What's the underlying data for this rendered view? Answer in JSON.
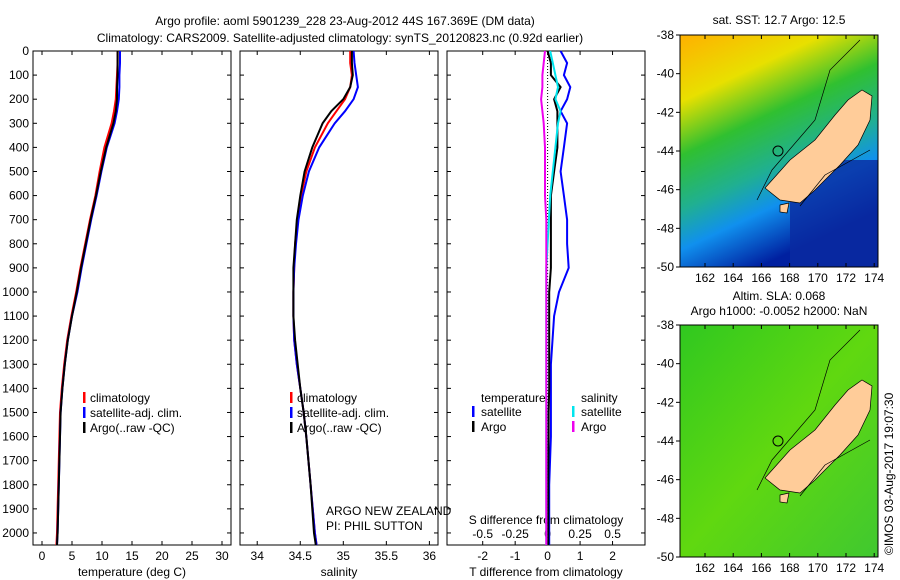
{
  "title_line1": "Argo profile: aoml 5901239_228 23-Aug-2012 44S 167.369E (DM data)",
  "title_line2": "Climatology: CARS2009. Satellite-adjusted climatology: synTS_20120823.nc (0.92d earlier)",
  "colors": {
    "climatology": "#ff0000",
    "satellite": "#0000ff",
    "argo": "#000000",
    "sal_satellite": "#00e5ee",
    "sal_argo": "#ee00ee",
    "land": "#ffcc99"
  },
  "chart_data": [
    {
      "type": "line",
      "name": "temperature",
      "xlabel": "temperature (deg C)",
      "xlim": [
        -1.5,
        31.5
      ],
      "ylim": [
        2050,
        0
      ],
      "xticks": [
        0,
        5,
        10,
        15,
        20,
        25,
        30
      ],
      "yticks": [
        0,
        100,
        200,
        300,
        400,
        500,
        600,
        700,
        800,
        900,
        1000,
        1100,
        1200,
        1300,
        1400,
        1500,
        1600,
        1700,
        1800,
        1900,
        2000
      ],
      "depth": [
        0,
        50,
        100,
        150,
        200,
        250,
        300,
        400,
        500,
        600,
        700,
        800,
        900,
        1000,
        1100,
        1200,
        1300,
        1400,
        1500,
        1600,
        1800,
        2000,
        2050
      ],
      "legend": [
        "climatology",
        "satellite-adj. clim.",
        "Argo(..raw -QC)"
      ],
      "series": [
        {
          "name": "climatology",
          "color": "#ff0000",
          "values": [
            12.6,
            12.6,
            12.5,
            12.4,
            12.3,
            12.0,
            11.6,
            10.4,
            9.6,
            8.9,
            8.0,
            7.2,
            6.4,
            5.7,
            4.9,
            4.2,
            3.7,
            3.3,
            3.0,
            2.9,
            2.7,
            2.5,
            2.4
          ]
        },
        {
          "name": "satellite-adj. clim.",
          "color": "#0000ff",
          "values": [
            13.0,
            13.0,
            12.9,
            12.9,
            12.8,
            12.5,
            12.1,
            10.8,
            9.9,
            9.1,
            8.2,
            7.4,
            6.6,
            5.9,
            5.0,
            4.3,
            3.8,
            3.4,
            3.1,
            3.0,
            2.8,
            2.6,
            2.5
          ]
        },
        {
          "name": "Argo(..raw -QC)",
          "color": "#000000",
          "values": [
            12.6,
            12.6,
            12.6,
            12.5,
            12.5,
            12.3,
            11.9,
            10.7,
            9.8,
            9.0,
            8.1,
            7.3,
            6.5,
            5.8,
            5.0,
            4.3,
            3.8,
            3.4,
            3.1,
            3.0,
            2.8,
            2.6,
            2.5
          ]
        }
      ]
    },
    {
      "type": "line",
      "name": "salinity",
      "xlabel": "salinity",
      "xlim": [
        33.8,
        36.1
      ],
      "ylim": [
        2050,
        0
      ],
      "xticks": [
        34,
        34.5,
        35,
        35.5,
        36
      ],
      "depth": [
        0,
        50,
        100,
        150,
        200,
        250,
        300,
        400,
        500,
        600,
        700,
        800,
        900,
        1000,
        1100,
        1200,
        1300,
        1400,
        1500,
        1600,
        1800,
        2000,
        2050
      ],
      "legend": [
        "climatology",
        "satellite-adj. clim.",
        "Argo(..raw -QC)"
      ],
      "annotations": [
        "ARGO NEW ZEALAND",
        "PI: PHIL SUTTON"
      ],
      "series": [
        {
          "name": "climatology",
          "color": "#ff0000",
          "values": [
            35.08,
            35.08,
            35.1,
            35.08,
            35.02,
            34.92,
            34.82,
            34.67,
            34.57,
            34.51,
            34.47,
            34.44,
            34.43,
            34.42,
            34.42,
            34.43,
            34.46,
            34.5,
            34.54,
            34.57,
            34.62,
            34.67,
            34.69
          ]
        },
        {
          "name": "satellite-adj. clim.",
          "color": "#0000ff",
          "values": [
            35.12,
            35.13,
            35.15,
            35.17,
            35.12,
            35.02,
            34.9,
            34.72,
            34.6,
            34.53,
            34.48,
            34.45,
            34.43,
            34.42,
            34.42,
            34.43,
            34.46,
            34.5,
            34.54,
            34.57,
            34.62,
            34.67,
            34.69
          ]
        },
        {
          "name": "Argo(..raw -QC)",
          "color": "#000000",
          "values": [
            35.1,
            35.1,
            35.11,
            35.08,
            35.0,
            34.86,
            34.76,
            34.64,
            34.55,
            34.5,
            34.46,
            34.44,
            34.42,
            34.42,
            34.42,
            34.44,
            34.47,
            34.5,
            34.54,
            34.57,
            34.62,
            34.66,
            34.68
          ]
        }
      ]
    },
    {
      "type": "line",
      "name": "difference",
      "xlabel": "T difference from climatology",
      "x2label": "S difference from climatology",
      "xlim": [
        -3.1,
        3.0
      ],
      "ylim": [
        2050,
        0
      ],
      "xticks": [
        -2,
        -1,
        0,
        1,
        2
      ],
      "x2lim": [
        -0.775,
        0.75
      ],
      "x2ticks": [
        -0.5,
        -0.25,
        0,
        0.25,
        0.5
      ],
      "x2ticklabels": [
        "-0.5",
        "-0.25",
        "0",
        "0.25",
        "0.5"
      ],
      "depth": [
        0,
        50,
        100,
        150,
        200,
        250,
        300,
        400,
        500,
        600,
        700,
        800,
        900,
        1000,
        1100,
        1200,
        1300,
        1400,
        1500,
        1600,
        1800,
        2000,
        2050
      ],
      "legend_temperature": {
        "title": "temperature",
        "items": [
          "satellite",
          "Argo"
        ]
      },
      "legend_salinity": {
        "title": "salinity",
        "items": [
          "satellite",
          "Argo"
        ]
      },
      "series": [
        {
          "name": "T satellite",
          "axis": "T",
          "color": "#0000ff",
          "values": [
            0.4,
            0.6,
            0.5,
            0.7,
            0.6,
            0.4,
            0.6,
            0.5,
            0.4,
            0.5,
            0.6,
            0.6,
            0.65,
            0.35,
            0.2,
            0.15,
            0.1,
            0.1,
            0.1,
            0.1,
            0.05,
            0.05,
            0.05
          ]
        },
        {
          "name": "T Argo",
          "axis": "T",
          "color": "#000000",
          "values": [
            0.0,
            0.1,
            0.1,
            0.4,
            0.2,
            0.3,
            0.3,
            0.3,
            0.2,
            0.1,
            0.1,
            0.1,
            0.1,
            0.05,
            0.05,
            0.05,
            0.05,
            0.05,
            0.03,
            0.03,
            0.02,
            0.02,
            0.02
          ]
        },
        {
          "name": "S satellite",
          "axis": "S",
          "color": "#00e5ee",
          "values": [
            0.02,
            0.04,
            0.06,
            0.08,
            0.06,
            0.1,
            0.08,
            0.06,
            0.04,
            0.02,
            0.01,
            0.0,
            -0.01,
            -0.01,
            -0.01,
            -0.01,
            -0.01,
            -0.01,
            -0.01,
            -0.01,
            -0.01,
            -0.01,
            -0.01
          ]
        },
        {
          "name": "S Argo",
          "axis": "S",
          "color": "#ee00ee",
          "values": [
            -0.02,
            -0.03,
            -0.04,
            -0.04,
            -0.05,
            -0.04,
            -0.03,
            -0.02,
            -0.02,
            -0.02,
            -0.01,
            -0.01,
            -0.01,
            -0.01,
            -0.01,
            -0.01,
            -0.01,
            -0.01,
            -0.01,
            -0.01,
            -0.01,
            -0.01,
            -0.01
          ]
        }
      ]
    }
  ],
  "maps": [
    {
      "title": "sat. SST: 12.7 Argo: 12.5",
      "lat_ticks": [
        "-38",
        "-40",
        "-42",
        "-44",
        "-46",
        "-48",
        "-50"
      ],
      "lon_ticks": [
        "162",
        "164",
        "166",
        "168",
        "170",
        "172",
        "174"
      ]
    },
    {
      "title1": "Altim. SLA: 0.068",
      "title2": "Argo h1000: -0.0052 h2000: NaN",
      "lat_ticks": [
        "-38",
        "-40",
        "-42",
        "-44",
        "-46",
        "-48",
        "-50"
      ],
      "lon_ticks": [
        "162",
        "164",
        "166",
        "168",
        "170",
        "172",
        "174"
      ]
    }
  ],
  "credit": "©IMOS 03-Aug-2017 19:07:30"
}
